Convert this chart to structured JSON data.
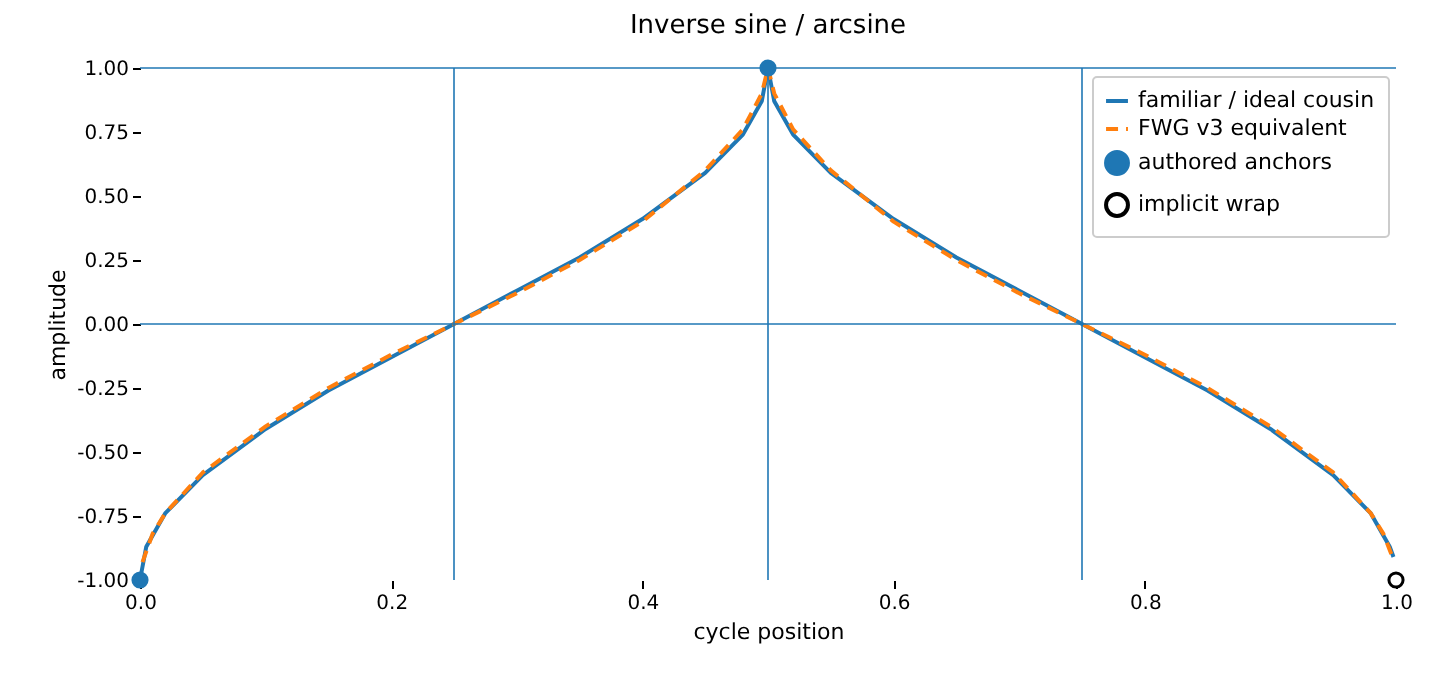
{
  "chart_data": {
    "type": "line",
    "title": "Inverse sine / arcsine",
    "xlabel": "cycle position",
    "ylabel": "amplitude",
    "series": [
      {
        "name": "familiar / ideal cousin",
        "type": "line",
        "color": "#1f77b4",
        "line_style": "solid",
        "x": [
          0,
          0.005,
          0.02,
          0.05,
          0.1,
          0.15,
          0.2,
          0.25,
          0.3,
          0.35,
          0.4,
          0.45,
          0.48,
          0.495,
          0.5,
          0.505,
          0.52,
          0.55,
          0.6,
          0.65,
          0.7,
          0.75,
          0.8,
          0.85,
          0.9,
          0.95,
          0.98,
          0.995,
          0.998
        ],
        "values": [
          -1,
          -0.87,
          -0.74,
          -0.59,
          -0.41,
          -0.26,
          -0.13,
          0,
          0.13,
          0.26,
          0.41,
          0.59,
          0.74,
          0.87,
          1,
          0.87,
          0.74,
          0.59,
          0.41,
          0.26,
          0.13,
          0,
          -0.13,
          -0.26,
          -0.41,
          -0.59,
          -0.74,
          -0.87,
          -0.91
        ]
      },
      {
        "name": "FWG v3 equivalent",
        "type": "line",
        "color": "#ff7f0e",
        "line_style": "dashed",
        "x": [
          0.002,
          0.01,
          0.02,
          0.05,
          0.1,
          0.15,
          0.2,
          0.25,
          0.3,
          0.35,
          0.4,
          0.45,
          0.48,
          0.495,
          0.5,
          0.505,
          0.52,
          0.55,
          0.6,
          0.65,
          0.7,
          0.75,
          0.8,
          0.85,
          0.9,
          0.95,
          0.98,
          0.99,
          0.998
        ],
        "values": [
          -0.93,
          -0.82,
          -0.74,
          -0.58,
          -0.4,
          -0.25,
          -0.12,
          0,
          0.12,
          0.25,
          0.4,
          0.6,
          0.76,
          0.9,
          1,
          0.9,
          0.76,
          0.6,
          0.4,
          0.25,
          0.12,
          0,
          -0.12,
          -0.25,
          -0.4,
          -0.58,
          -0.74,
          -0.82,
          -0.92
        ]
      },
      {
        "name": "authored anchors",
        "type": "scatter",
        "color": "#1f77b4",
        "marker": "circle",
        "x": [
          0,
          0.5
        ],
        "values": [
          -1,
          1
        ]
      },
      {
        "name": "implicit wrap",
        "type": "scatter",
        "color": "#000000",
        "marker": "circle",
        "x": [
          1
        ],
        "values": [
          -1
        ]
      }
    ],
    "xlim": [
      0,
      1
    ],
    "ylim": [
      -1,
      1
    ],
    "xticks": [
      {
        "value": 0,
        "label": "0.0"
      },
      {
        "value": 0.2,
        "label": "0.2"
      },
      {
        "value": 0.4,
        "label": "0.4"
      },
      {
        "value": 0.6,
        "label": "0.6"
      },
      {
        "value": 0.8,
        "label": "0.8"
      },
      {
        "value": 1,
        "label": "1.0"
      }
    ],
    "yticks": [
      {
        "value": -1,
        "label": "-1.00"
      },
      {
        "value": -0.75,
        "label": "-0.75"
      },
      {
        "value": -0.5,
        "label": "-0.50"
      },
      {
        "value": -0.25,
        "label": "-0.25"
      },
      {
        "value": 0,
        "label": "0.00"
      },
      {
        "value": 0.25,
        "label": "0.25"
      },
      {
        "value": 0.5,
        "label": "0.50"
      },
      {
        "value": 0.75,
        "label": "0.75"
      },
      {
        "value": 1,
        "label": "1.00"
      }
    ],
    "ref_lines": [
      {
        "axis": "y",
        "value": 0,
        "color": "#1f77b4"
      },
      {
        "axis": "y",
        "value": 1,
        "color": "#1f77b4"
      },
      {
        "axis": "x",
        "value": 0.25,
        "color": "#1f77b4"
      },
      {
        "axis": "x",
        "value": 0.5,
        "color": "#1f77b4"
      },
      {
        "axis": "x",
        "value": 0.75,
        "color": "#1f77b4"
      }
    ],
    "grid": false,
    "legend": "top right"
  }
}
